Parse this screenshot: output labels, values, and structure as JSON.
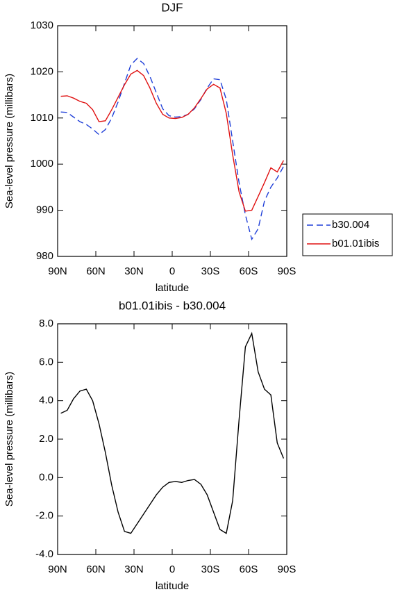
{
  "chart_data": [
    {
      "type": "line",
      "title": "DJF",
      "xlabel": "latitude",
      "ylabel": "Sea-level pressure (millibars)",
      "x": [
        87.5,
        82.5,
        77.5,
        72.5,
        67.5,
        62.5,
        57.5,
        52.5,
        47.5,
        42.5,
        37.5,
        32.5,
        27.5,
        22.5,
        17.5,
        12.5,
        7.5,
        2.5,
        -2.5,
        -7.5,
        -12.5,
        -17.5,
        -22.5,
        -27.5,
        -32.5,
        -37.5,
        -42.5,
        -47.5,
        -52.5,
        -57.5,
        -62.5,
        -67.5,
        -72.5,
        -77.5,
        -82.5,
        -87.5
      ],
      "series": [
        {
          "name": "b30.004",
          "color": "#1f3fd8",
          "line_style": "dashed",
          "values": [
            1011.3,
            1011.2,
            1010.2,
            1009.2,
            1008.6,
            1007.6,
            1006.4,
            1007.5,
            1010.0,
            1013.5,
            1017.5,
            1021.5,
            1022.9,
            1021.8,
            1019.0,
            1015.5,
            1012.0,
            1010.5,
            1010.2,
            1010.3,
            1010.8,
            1012.0,
            1014.0,
            1016.5,
            1018.5,
            1018.3,
            1014.0,
            1005.0,
            996.0,
            989.0,
            983.7,
            986.0,
            992.0,
            995.0,
            997.0,
            999.5
          ]
        },
        {
          "name": "b01.01ibis",
          "color": "#e01010",
          "line_style": "solid",
          "values": [
            1014.7,
            1014.8,
            1014.3,
            1013.6,
            1013.2,
            1011.8,
            1009.2,
            1009.4,
            1011.8,
            1014.5,
            1017.2,
            1019.5,
            1020.3,
            1019.2,
            1016.5,
            1013.2,
            1010.8,
            1010.0,
            1009.9,
            1010.1,
            1010.8,
            1012.2,
            1014.2,
            1016.3,
            1017.3,
            1016.5,
            1011.0,
            1002.0,
            994.0,
            989.8,
            990.0,
            993.0,
            996.0,
            999.2,
            998.3,
            1000.8
          ]
        }
      ],
      "xlim": [
        90,
        -90
      ],
      "xticks": [
        {
          "value": 90,
          "label": "90N"
        },
        {
          "value": 60,
          "label": "60N"
        },
        {
          "value": 30,
          "label": "30N"
        },
        0,
        {
          "value": -30,
          "label": "30S"
        },
        {
          "value": -60,
          "label": "60S"
        },
        {
          "value": -90,
          "label": "90S"
        }
      ],
      "ylim": [
        980,
        1030
      ],
      "yticks": [
        980,
        990,
        1000,
        1010,
        1020,
        1030
      ],
      "legend": "right"
    },
    {
      "type": "line",
      "title": "b01.01ibis - b30.004",
      "xlabel": "latitude",
      "ylabel": "Sea-level pressure (millibars)",
      "x": [
        87.5,
        82.5,
        77.5,
        72.5,
        67.5,
        62.5,
        57.5,
        52.5,
        47.5,
        42.5,
        37.5,
        32.5,
        27.5,
        22.5,
        17.5,
        12.5,
        7.5,
        2.5,
        -2.5,
        -7.5,
        -12.5,
        -17.5,
        -22.5,
        -27.5,
        -32.5,
        -37.5,
        -42.5,
        -47.5,
        -52.5,
        -57.5,
        -62.5,
        -67.5,
        -72.5,
        -77.5,
        -82.5,
        -87.5
      ],
      "series": [
        {
          "color": "#000000",
          "line_style": "solid",
          "values": [
            3.35,
            3.5,
            4.1,
            4.5,
            4.6,
            4.0,
            2.8,
            1.3,
            -0.4,
            -1.8,
            -2.8,
            -2.9,
            -2.4,
            -1.9,
            -1.4,
            -0.9,
            -0.5,
            -0.25,
            -0.2,
            -0.25,
            -0.15,
            -0.1,
            -0.35,
            -0.9,
            -1.8,
            -2.7,
            -2.9,
            -1.2,
            3.0,
            6.8,
            7.5,
            5.5,
            4.6,
            4.3,
            1.8,
            1.0
          ]
        }
      ],
      "xlim": [
        90,
        -90
      ],
      "xticks": [
        {
          "value": 90,
          "label": "90N"
        },
        {
          "value": 60,
          "label": "60N"
        },
        {
          "value": 30,
          "label": "30N"
        },
        0,
        {
          "value": -30,
          "label": "30S"
        },
        {
          "value": -60,
          "label": "60S"
        },
        {
          "value": -90,
          "label": "90S"
        }
      ],
      "ylim": [
        -4,
        8
      ],
      "yticks": [
        {
          "value": -4,
          "label": "-4.0"
        },
        {
          "value": -2,
          "label": "-2.0"
        },
        {
          "value": 0,
          "label": "0.0"
        },
        {
          "value": 2,
          "label": "2.0"
        },
        {
          "value": 4,
          "label": "4.0"
        },
        {
          "value": 6,
          "label": "6.0"
        },
        {
          "value": 8,
          "label": "8.0"
        }
      ]
    }
  ]
}
